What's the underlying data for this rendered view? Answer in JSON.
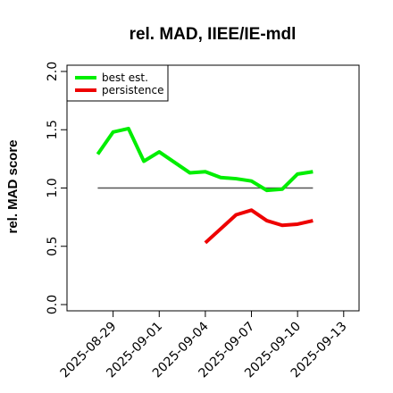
{
  "chart_data": {
    "type": "line",
    "title": "rel. MAD, IIEE/IE-mdl",
    "xlabel": "",
    "ylabel": "rel. MAD score",
    "x_tick_labels": [
      "2025-08-29",
      "2025-09-01",
      "2025-09-04",
      "2025-09-07",
      "2025-09-10",
      "2025-09-13"
    ],
    "x": [
      "2025-08-28",
      "2025-08-29",
      "2025-08-30",
      "2025-08-31",
      "2025-09-01",
      "2025-09-02",
      "2025-09-03",
      "2025-09-04",
      "2025-09-05",
      "2025-09-06",
      "2025-09-07",
      "2025-09-08",
      "2025-09-09",
      "2025-09-10",
      "2025-09-11"
    ],
    "xlim": [
      "2025-08-26",
      "2025-09-14"
    ],
    "ylim": [
      0.0,
      2.0
    ],
    "y_ticks": [
      0.0,
      0.5,
      1.0,
      1.5,
      2.0
    ],
    "y_tick_labels": [
      "0.0",
      "0.5",
      "1.0",
      "1.5",
      "2.0"
    ],
    "reference_line": {
      "y": 1.0,
      "color": "#555555"
    },
    "grid": false,
    "legend_position": "top-left",
    "series": [
      {
        "name": "best est.",
        "color": "#00ee00",
        "values": [
          1.29,
          1.48,
          1.51,
          1.23,
          1.31,
          1.22,
          1.13,
          1.14,
          1.09,
          1.08,
          1.06,
          0.98,
          0.99,
          1.12,
          1.14
        ]
      },
      {
        "name": "persistence",
        "color": "#ee0000",
        "values": [
          null,
          null,
          null,
          null,
          null,
          null,
          null,
          0.53,
          0.65,
          0.77,
          0.81,
          0.72,
          0.68,
          0.69,
          0.72
        ]
      }
    ]
  }
}
